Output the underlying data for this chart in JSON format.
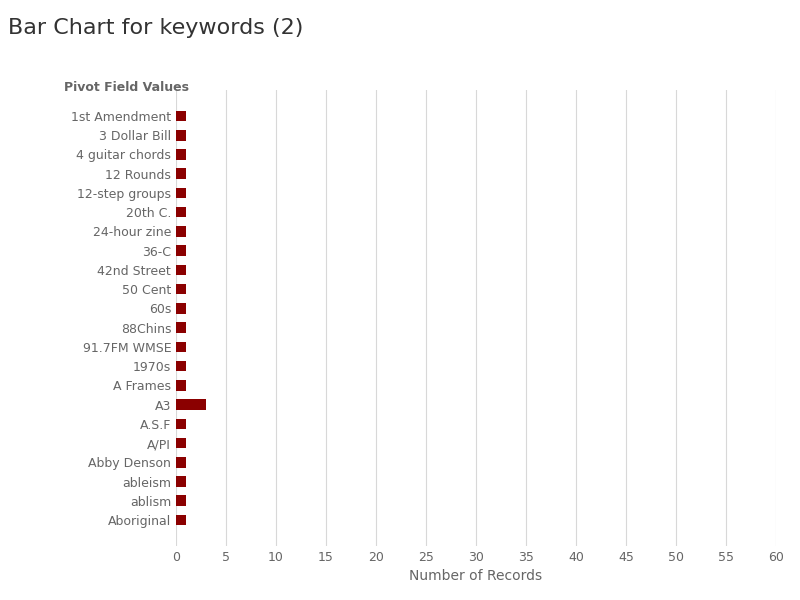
{
  "title": "Bar Chart for keywords (2)",
  "categories": [
    "1st Amendment",
    "3 Dollar Bill",
    "4 guitar chords",
    "12 Rounds",
    "12-step groups",
    "20th C.",
    "24-hour zine",
    "36-C",
    "42nd Street",
    "50 Cent",
    "60s",
    "88Chins",
    "91.7FM WMSE",
    "1970s",
    "A Frames",
    "A3",
    "A.S.F",
    "A/PI",
    "Abby Denson",
    "ableism",
    "ablism",
    "Aboriginal"
  ],
  "values": [
    1,
    1,
    1,
    1,
    1,
    1,
    1,
    1,
    1,
    1,
    1,
    1,
    1,
    1,
    1,
    3,
    1,
    1,
    1,
    1,
    1,
    1
  ],
  "bar_color": "#8B0000",
  "pivot_label": "Pivot Field Values",
  "xlabel": "Number of Records",
  "xlim": [
    0,
    60
  ],
  "xticks": [
    0,
    5,
    10,
    15,
    20,
    25,
    30,
    35,
    40,
    45,
    50,
    55,
    60
  ],
  "background_color": "#ffffff",
  "grid_color": "#d8d8d8",
  "title_fontsize": 16,
  "xlabel_fontsize": 10,
  "tick_fontsize": 9,
  "pivot_label_fontsize": 9
}
